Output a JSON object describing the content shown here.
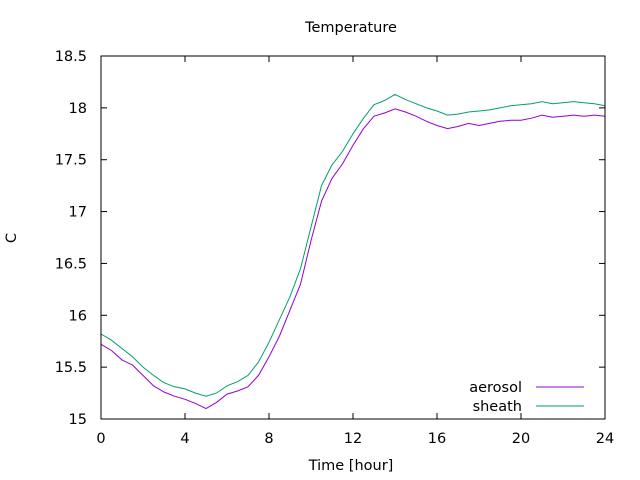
{
  "chart_data": {
    "type": "line",
    "title": "Temperature",
    "xlabel": "Time [hour]",
    "ylabel": "C",
    "xlim": [
      0,
      24
    ],
    "ylim": [
      15,
      18.5
    ],
    "xticks": [
      0,
      4,
      8,
      12,
      16,
      20,
      24
    ],
    "yticks": [
      15,
      15.5,
      16,
      16.5,
      17,
      17.5,
      18,
      18.5
    ],
    "xtick_labels": [
      "0",
      "4",
      "8",
      "12",
      "16",
      "20",
      "24"
    ],
    "ytick_labels": [
      "15",
      "15.5",
      "16",
      "16.5",
      "17",
      "17.5",
      "18",
      "18.5"
    ],
    "grid": false,
    "legend_position": "bottom-right",
    "series": [
      {
        "name": "aerosol",
        "color": "#9400d3",
        "x": [
          0,
          0.5,
          1,
          1.5,
          2,
          2.5,
          3,
          3.5,
          4,
          4.5,
          5,
          5.5,
          6,
          6.5,
          7,
          7.5,
          8,
          8.5,
          9,
          9.5,
          10,
          10.5,
          11,
          11.5,
          12,
          12.5,
          13,
          13.5,
          14,
          14.5,
          15,
          15.5,
          16,
          16.5,
          17,
          17.5,
          18,
          18.5,
          19,
          19.5,
          20,
          20.5,
          21,
          21.5,
          22,
          22.5,
          23,
          23.5,
          24
        ],
        "y": [
          15.72,
          15.66,
          15.57,
          15.52,
          15.42,
          15.32,
          15.26,
          15.22,
          15.19,
          15.15,
          15.1,
          15.16,
          15.24,
          15.27,
          15.31,
          15.42,
          15.6,
          15.8,
          16.05,
          16.3,
          16.72,
          17.1,
          17.32,
          17.46,
          17.64,
          17.8,
          17.92,
          17.95,
          17.99,
          17.96,
          17.92,
          17.87,
          17.83,
          17.8,
          17.82,
          17.85,
          17.83,
          17.85,
          17.87,
          17.88,
          17.88,
          17.9,
          17.93,
          17.91,
          17.92,
          17.93,
          17.92,
          17.93,
          17.92
        ]
      },
      {
        "name": "sheath",
        "color": "#009e73",
        "x": [
          0,
          0.5,
          1,
          1.5,
          2,
          2.5,
          3,
          3.5,
          4,
          4.5,
          5,
          5.5,
          6,
          6.5,
          7,
          7.5,
          8,
          8.5,
          9,
          9.5,
          10,
          10.5,
          11,
          11.5,
          12,
          12.5,
          13,
          13.5,
          14,
          14.5,
          15,
          15.5,
          16,
          16.5,
          17,
          17.5,
          18,
          18.5,
          19,
          19.5,
          20,
          20.5,
          21,
          21.5,
          22,
          22.5,
          23,
          23.5,
          24
        ],
        "y": [
          15.82,
          15.76,
          15.68,
          15.6,
          15.5,
          15.42,
          15.35,
          15.31,
          15.29,
          15.25,
          15.22,
          15.25,
          15.32,
          15.36,
          15.42,
          15.55,
          15.74,
          15.96,
          16.18,
          16.45,
          16.85,
          17.25,
          17.45,
          17.58,
          17.75,
          17.9,
          18.03,
          18.07,
          18.13,
          18.08,
          18.04,
          18.0,
          17.97,
          17.93,
          17.94,
          17.96,
          17.97,
          17.98,
          18.0,
          18.02,
          18.03,
          18.04,
          18.06,
          18.04,
          18.05,
          18.06,
          18.05,
          18.04,
          18.02
        ]
      }
    ]
  }
}
